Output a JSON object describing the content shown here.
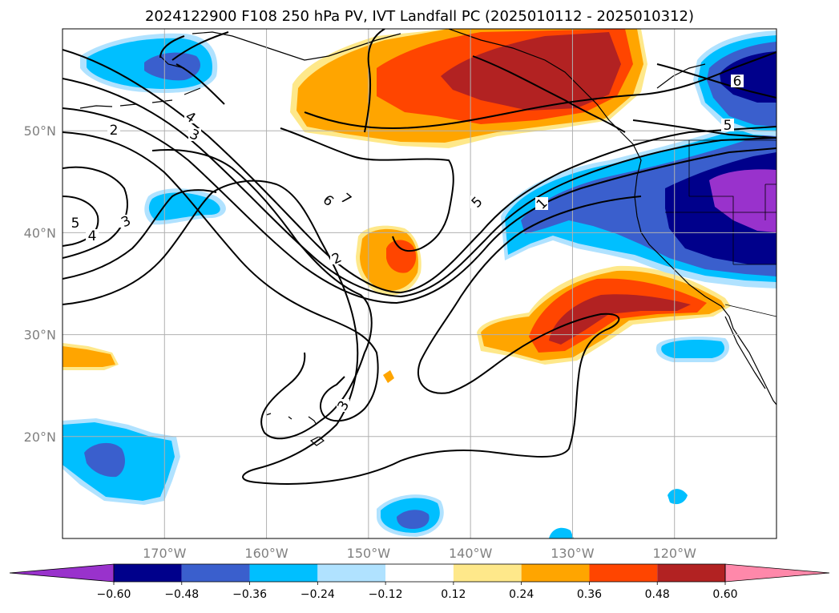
{
  "title": "2024122900 F108 250 hPa PV, IVT Landfall PC (2025010112 - 2025010312)",
  "map": {
    "lon_range": [
      -180,
      -110
    ],
    "lat_range": [
      10,
      60
    ],
    "lon_ticks": [
      {
        "lon": -170,
        "label": "170°W"
      },
      {
        "lon": -160,
        "label": "160°W"
      },
      {
        "lon": -150,
        "label": "150°W"
      },
      {
        "lon": -140,
        "label": "140°W"
      },
      {
        "lon": -130,
        "label": "130°W"
      },
      {
        "lon": -120,
        "label": "120°W"
      }
    ],
    "lat_ticks": [
      {
        "lat": 20,
        "label": "20°N"
      },
      {
        "lat": 30,
        "label": "30°N"
      },
      {
        "lat": 40,
        "label": "40°N"
      },
      {
        "lat": 50,
        "label": "50°N"
      }
    ],
    "grid": true,
    "contour_labels": [
      "2",
      "3",
      "4",
      "5",
      "6",
      "7",
      "2",
      "3",
      "4",
      "5",
      "1",
      "5",
      "6",
      "3"
    ]
  },
  "colorbar": {
    "extend": "both",
    "colors": [
      "#9932cc",
      "#00008b",
      "#3a5fcd",
      "#00bfff",
      "#b0e2ff",
      "#ffffff",
      "#fee88a",
      "#ffa500",
      "#ff4500",
      "#b22222",
      "#ff88aa"
    ],
    "tick_labels": [
      "−0.60",
      "−0.48",
      "−0.36",
      "−0.24",
      "−0.12",
      "0.12",
      "0.24",
      "0.36",
      "0.48",
      "0.60"
    ]
  }
}
